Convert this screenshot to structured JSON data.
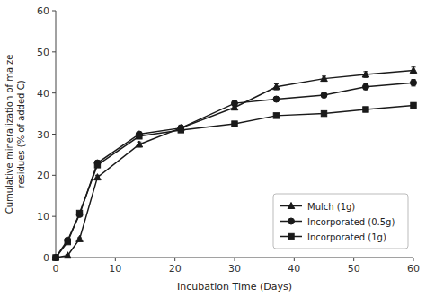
{
  "chart_data": {
    "type": "line",
    "xlabel": "Incubation Time (Days)",
    "ylabel": "Cumulative mineralization of maize\nresidues (% of added C)",
    "xlim": [
      0,
      60
    ],
    "ylim": [
      0,
      60
    ],
    "xticks": [
      0,
      10,
      20,
      30,
      40,
      50,
      60
    ],
    "yticks": [
      0,
      10,
      20,
      30,
      40,
      50,
      60
    ],
    "grid": false,
    "legend": "lower right",
    "x": [
      0,
      2,
      4,
      7,
      14,
      21,
      30,
      37,
      45,
      52,
      60
    ],
    "series": [
      {
        "name": "Mulch (1g)",
        "marker": "triangle",
        "color": "#1a1a1a",
        "values": [
          0,
          0.5,
          4.5,
          19.5,
          27.5,
          31.5,
          36.5,
          41.5,
          43.5,
          44.5,
          45.5
        ],
        "yerr": [
          0,
          0.2,
          0.3,
          0.5,
          0.6,
          0.7,
          0.6,
          0.7,
          0.6,
          0.7,
          0.8
        ]
      },
      {
        "name": "Incorporated (0.5g)",
        "marker": "circle",
        "color": "#1a1a1a",
        "values": [
          0,
          4.2,
          10.5,
          23.0,
          30.0,
          31.5,
          37.5,
          38.5,
          39.5,
          41.5,
          42.5
        ],
        "yerr": [
          0,
          0.3,
          0.4,
          0.5,
          0.5,
          0.6,
          0.7,
          0.6,
          0.6,
          0.7,
          0.8
        ]
      },
      {
        "name": "Incorporated (1g)",
        "marker": "square",
        "color": "#1a1a1a",
        "values": [
          0,
          3.8,
          10.8,
          22.5,
          29.5,
          31.0,
          32.5,
          34.5,
          35.0,
          36.0,
          37.0
        ],
        "yerr": [
          0,
          0.2,
          0.3,
          0.4,
          0.5,
          0.5,
          0.5,
          0.5,
          0.5,
          0.5,
          0.6
        ]
      }
    ]
  }
}
